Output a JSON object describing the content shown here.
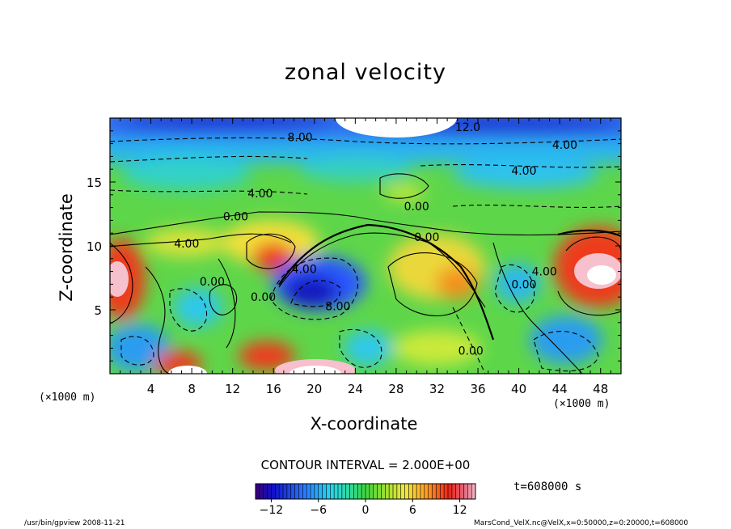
{
  "title": "zonal velocity",
  "footer": {
    "left": "/usr/bin/gpview  2008-11-21",
    "right": "MarsCond_VelX.nc@VelX,x=0:50000,z=0:20000,t=608000"
  },
  "contour_interval": "CONTOUR INTERVAL = 2.000E+00",
  "time_label": "t=608000 s",
  "chart_data": {
    "type": "heatmap",
    "title": "zonal velocity",
    "xlabel": "X-coordinate",
    "ylabel": "Z-coordinate",
    "x_unit": "(×1000 m)",
    "y_unit": "(×1000 m)",
    "xlim": [
      0,
      50
    ],
    "ylim": [
      0,
      20
    ],
    "x_ticks": [
      4,
      8,
      12,
      16,
      20,
      24,
      28,
      32,
      36,
      40,
      44,
      48
    ],
    "y_ticks": [
      5,
      10,
      15
    ],
    "colorbar": {
      "ticks": [
        -12,
        -6,
        0,
        6,
        12
      ],
      "range": [
        -14,
        14
      ]
    },
    "contour_labels": [
      {
        "text": "8.00",
        "x": 18.6,
        "z": 18.5
      },
      {
        "text": "12.0",
        "x": 35.0,
        "z": 19.3
      },
      {
        "text": "4.00",
        "x": 44.5,
        "z": 17.9
      },
      {
        "text": "4.00",
        "x": 40.5,
        "z": 15.9
      },
      {
        "text": "4.00",
        "x": 14.7,
        "z": 14.1
      },
      {
        "text": "0.00",
        "x": 12.3,
        "z": 12.3
      },
      {
        "text": "0.00",
        "x": 30.0,
        "z": 13.1
      },
      {
        "text": "4.00",
        "x": 7.5,
        "z": 10.2
      },
      {
        "text": "0.00",
        "x": 31.0,
        "z": 10.7
      },
      {
        "text": "0.00",
        "x": 10.0,
        "z": 7.2
      },
      {
        "text": "4.00",
        "x": 19.0,
        "z": 8.2
      },
      {
        "text": "0.00",
        "x": 15.0,
        "z": 6.0
      },
      {
        "text": "8.00",
        "x": 22.3,
        "z": 5.3
      },
      {
        "text": "0.00",
        "x": 40.5,
        "z": 7.0
      },
      {
        "text": "4.00",
        "x": 42.5,
        "z": 8.0
      },
      {
        "text": "0.00",
        "x": 35.3,
        "z": 1.8
      }
    ]
  }
}
